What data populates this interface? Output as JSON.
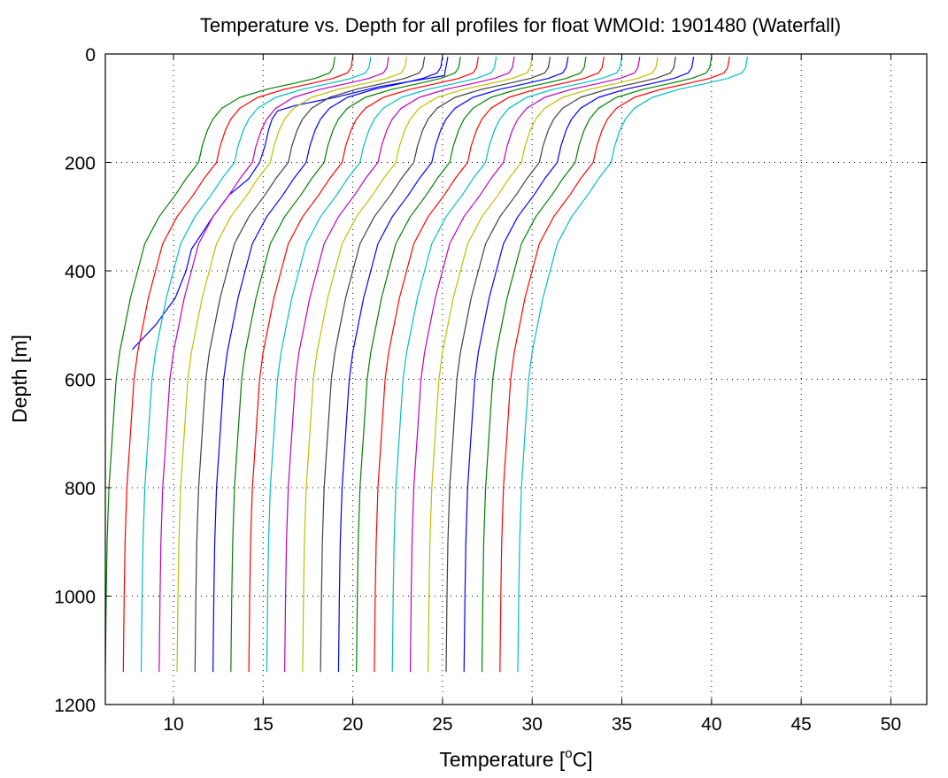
{
  "chart_data": {
    "type": "line",
    "title": "Temperature vs. Depth for all profiles for float WMOId: 1901480 (Waterfall)",
    "xlabel_prefix": "Temperature [",
    "xlabel_sup": "o",
    "xlabel_suffix": "C]",
    "ylabel": "Depth [m]",
    "xlim": [
      6.2,
      52
    ],
    "ylim": [
      0,
      1200
    ],
    "y_inverted": true,
    "grid": true,
    "x_ticks": [
      10,
      15,
      20,
      25,
      30,
      35,
      40,
      45,
      50
    ],
    "y_ticks": [
      0,
      200,
      400,
      600,
      800,
      1000,
      1200
    ],
    "x_tick_labels": [
      "10",
      "15",
      "20",
      "25",
      "30",
      "35",
      "40",
      "45",
      "50"
    ],
    "y_tick_labels": [
      "0",
      "200",
      "400",
      "600",
      "800",
      "1000",
      "1200"
    ],
    "profile_offset_step": 1,
    "base_profile": {
      "depth": [
        5,
        25,
        35,
        45,
        55,
        65,
        80,
        100,
        120,
        140,
        170,
        200,
        230,
        260,
        300,
        350,
        400,
        450,
        500,
        550,
        600,
        650,
        700,
        750,
        800,
        900,
        1000,
        1140
      ],
      "temperature": [
        19.0,
        18.9,
        18.7,
        17.9,
        16.6,
        15.2,
        13.7,
        12.7,
        12.2,
        11.9,
        11.6,
        11.4,
        10.7,
        10.1,
        9.2,
        8.4,
        8.0,
        7.6,
        7.3,
        7.0,
        6.8,
        6.7,
        6.6,
        6.5,
        6.4,
        6.3,
        6.25,
        6.2
      ]
    },
    "series_colors": [
      "#0000ff",
      "#008000",
      "#ff0000",
      "#00bfbf",
      "#bf00bf",
      "#bfbf00",
      "#404040"
    ],
    "series": [
      {
        "x_offset": 0,
        "color": "#0000ff",
        "depth": [
          5,
          40,
          60,
          80,
          95,
          105,
          120,
          140,
          170,
          200,
          230,
          260,
          300,
          360,
          400,
          450,
          500,
          545
        ],
        "temperature": [
          25.3,
          25.1,
          21.5,
          19.0,
          16.8,
          15.8,
          15.5,
          15.3,
          15.1,
          14.8,
          14.2,
          13.1,
          12.2,
          11.0,
          10.7,
          10.1,
          9.0,
          7.7
        ]
      },
      {
        "x_offset": 0
      },
      {
        "x_offset": 1
      },
      {
        "x_offset": 2
      },
      {
        "x_offset": 3
      },
      {
        "x_offset": 4
      },
      {
        "x_offset": 5
      },
      {
        "x_offset": 6
      },
      {
        "x_offset": 7
      },
      {
        "x_offset": 8
      },
      {
        "x_offset": 9
      },
      {
        "x_offset": 10
      },
      {
        "x_offset": 11
      },
      {
        "x_offset": 12
      },
      {
        "x_offset": 13
      },
      {
        "x_offset": 14
      },
      {
        "x_offset": 15
      },
      {
        "x_offset": 16
      },
      {
        "x_offset": 17
      },
      {
        "x_offset": 18
      },
      {
        "x_offset": 19
      },
      {
        "x_offset": 20
      },
      {
        "x_offset": 21
      },
      {
        "x_offset": 22
      },
      {
        "x_offset": 23
      }
    ]
  }
}
